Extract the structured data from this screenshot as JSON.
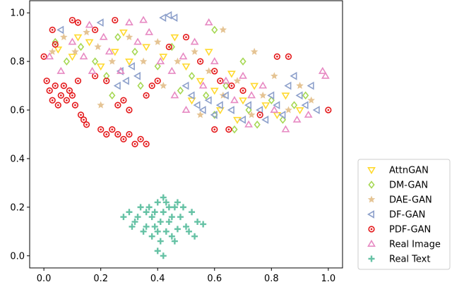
{
  "chart_data": {
    "type": "scatter",
    "xlim": [
      -0.05,
      1.05
    ],
    "ylim": [
      -0.05,
      1.05
    ],
    "xticks": [
      "0.0",
      "0.2",
      "0.4",
      "0.6",
      "0.8",
      "1.0"
    ],
    "yticks": [
      "0.0",
      "0.2",
      "0.4",
      "0.6",
      "0.8",
      "1.0"
    ],
    "grid": false,
    "legend_position": "right-bottom",
    "series": [
      {
        "name": "AttnGAN",
        "marker": "triangle-down",
        "color": "#ffd92f",
        "points": [
          [
            0.05,
            0.85
          ],
          [
            0.1,
            0.82
          ],
          [
            0.12,
            0.9
          ],
          [
            0.16,
            0.88
          ],
          [
            0.2,
            0.78
          ],
          [
            0.25,
            0.84
          ],
          [
            0.3,
            0.8
          ],
          [
            0.36,
            0.86
          ],
          [
            0.42,
            0.82
          ],
          [
            0.5,
            0.78
          ],
          [
            0.55,
            0.72
          ],
          [
            0.6,
            0.68
          ],
          [
            0.62,
            0.6
          ],
          [
            0.66,
            0.75
          ],
          [
            0.7,
            0.64
          ],
          [
            0.74,
            0.7
          ],
          [
            0.78,
            0.62
          ],
          [
            0.82,
            0.58
          ],
          [
            0.85,
            0.66
          ],
          [
            0.9,
            0.6
          ],
          [
            0.46,
            0.9
          ],
          [
            0.28,
            0.92
          ],
          [
            0.58,
            0.84
          ],
          [
            0.68,
            0.56
          ],
          [
            0.52,
            0.64
          ]
        ]
      },
      {
        "name": "DM-GAN",
        "marker": "diamond",
        "color": "#a6d854",
        "points": [
          [
            0.04,
            0.88
          ],
          [
            0.08,
            0.8
          ],
          [
            0.13,
            0.86
          ],
          [
            0.18,
            0.8
          ],
          [
            0.22,
            0.74
          ],
          [
            0.26,
            0.9
          ],
          [
            0.32,
            0.84
          ],
          [
            0.4,
            0.78
          ],
          [
            0.45,
            0.86
          ],
          [
            0.52,
            0.74
          ],
          [
            0.57,
            0.66
          ],
          [
            0.6,
            0.58
          ],
          [
            0.64,
            0.7
          ],
          [
            0.67,
            0.52
          ],
          [
            0.72,
            0.6
          ],
          [
            0.75,
            0.54
          ],
          [
            0.8,
            0.64
          ],
          [
            0.84,
            0.56
          ],
          [
            0.88,
            0.62
          ],
          [
            0.92,
            0.66
          ],
          [
            0.6,
            0.93
          ],
          [
            0.34,
            0.7
          ],
          [
            0.24,
            0.66
          ],
          [
            0.7,
            0.8
          ],
          [
            0.48,
            0.68
          ]
        ]
      },
      {
        "name": "DAE-GAN",
        "marker": "star",
        "color": "#e5c494",
        "points": [
          [
            0.03,
            0.84
          ],
          [
            0.07,
            0.9
          ],
          [
            0.11,
            0.84
          ],
          [
            0.15,
            0.92
          ],
          [
            0.19,
            0.86
          ],
          [
            0.24,
            0.8
          ],
          [
            0.3,
            0.9
          ],
          [
            0.35,
            0.8
          ],
          [
            0.4,
            0.88
          ],
          [
            0.47,
            0.8
          ],
          [
            0.53,
            0.84
          ],
          [
            0.58,
            0.76
          ],
          [
            0.63,
            0.66
          ],
          [
            0.68,
            0.72
          ],
          [
            0.73,
            0.58
          ],
          [
            0.77,
            0.66
          ],
          [
            0.81,
            0.74
          ],
          [
            0.86,
            0.6
          ],
          [
            0.9,
            0.7
          ],
          [
            0.94,
            0.64
          ],
          [
            0.63,
            0.93
          ],
          [
            0.42,
            0.7
          ],
          [
            0.2,
            0.62
          ],
          [
            0.74,
            0.84
          ],
          [
            0.55,
            0.58
          ]
        ]
      },
      {
        "name": "DF-GAN",
        "marker": "triangle-left",
        "color": "#8da0cb",
        "points": [
          [
            0.06,
            0.93
          ],
          [
            0.2,
            0.96
          ],
          [
            0.27,
            0.76
          ],
          [
            0.29,
            0.72
          ],
          [
            0.31,
            0.78
          ],
          [
            0.33,
            0.74
          ],
          [
            0.26,
            0.7
          ],
          [
            0.42,
            0.98
          ],
          [
            0.44,
            0.99
          ],
          [
            0.46,
            0.98
          ],
          [
            0.52,
            0.66
          ],
          [
            0.54,
            0.62
          ],
          [
            0.56,
            0.6
          ],
          [
            0.58,
            0.64
          ],
          [
            0.6,
            0.58
          ],
          [
            0.62,
            0.62
          ],
          [
            0.64,
            0.66
          ],
          [
            0.66,
            0.6
          ],
          [
            0.7,
            0.56
          ],
          [
            0.72,
            0.62
          ],
          [
            0.76,
            0.6
          ],
          [
            0.8,
            0.66
          ],
          [
            0.84,
            0.58
          ],
          [
            0.86,
            0.7
          ],
          [
            0.88,
            0.74
          ],
          [
            0.9,
            0.66
          ],
          [
            0.92,
            0.62
          ],
          [
            0.94,
            0.7
          ],
          [
            0.96,
            0.6
          ],
          [
            0.5,
            0.7
          ],
          [
            0.78,
            0.56
          ],
          [
            0.82,
            0.62
          ]
        ]
      },
      {
        "name": "PDF-GAN",
        "marker": "circle-dot",
        "color": "#e41a1c",
        "points": [
          [
            0.0,
            0.82
          ],
          [
            0.01,
            0.72
          ],
          [
            0.02,
            0.68
          ],
          [
            0.03,
            0.64
          ],
          [
            0.04,
            0.7
          ],
          [
            0.05,
            0.62
          ],
          [
            0.06,
            0.66
          ],
          [
            0.07,
            0.7
          ],
          [
            0.08,
            0.64
          ],
          [
            0.09,
            0.68
          ],
          [
            0.1,
            0.66
          ],
          [
            0.11,
            0.62
          ],
          [
            0.12,
            0.72
          ],
          [
            0.13,
            0.58
          ],
          [
            0.14,
            0.56
          ],
          [
            0.15,
            0.54
          ],
          [
            0.2,
            0.52
          ],
          [
            0.22,
            0.5
          ],
          [
            0.24,
            0.52
          ],
          [
            0.26,
            0.5
          ],
          [
            0.28,
            0.48
          ],
          [
            0.3,
            0.5
          ],
          [
            0.32,
            0.46
          ],
          [
            0.34,
            0.48
          ],
          [
            0.36,
            0.46
          ],
          [
            0.1,
            0.97
          ],
          [
            0.12,
            0.96
          ],
          [
            0.04,
            0.87
          ],
          [
            0.03,
            0.93
          ],
          [
            0.18,
            0.74
          ],
          [
            0.22,
            0.72
          ],
          [
            0.26,
            0.62
          ],
          [
            0.28,
            0.64
          ],
          [
            0.3,
            0.6
          ],
          [
            0.36,
            0.66
          ],
          [
            0.38,
            0.7
          ],
          [
            0.4,
            0.72
          ],
          [
            0.44,
            0.86
          ],
          [
            0.5,
            0.9
          ],
          [
            0.55,
            0.8
          ],
          [
            0.6,
            0.76
          ],
          [
            0.62,
            0.72
          ],
          [
            0.66,
            0.7
          ],
          [
            0.7,
            0.68
          ],
          [
            0.76,
            0.58
          ],
          [
            0.82,
            0.82
          ],
          [
            0.86,
            0.82
          ],
          [
            0.6,
            0.52
          ],
          [
            0.65,
            0.52
          ],
          [
            1.0,
            0.6
          ],
          [
            0.25,
            0.97
          ],
          [
            0.18,
            0.93
          ]
        ]
      },
      {
        "name": "Real Image",
        "marker": "triangle-up",
        "color": "#e78ac3",
        "points": [
          [
            0.02,
            0.82
          ],
          [
            0.06,
            0.76
          ],
          [
            0.1,
            0.88
          ],
          [
            0.14,
            0.82
          ],
          [
            0.17,
            0.76
          ],
          [
            0.21,
            0.9
          ],
          [
            0.23,
            0.84
          ],
          [
            0.27,
            0.76
          ],
          [
            0.33,
            0.88
          ],
          [
            0.37,
            0.92
          ],
          [
            0.41,
            0.8
          ],
          [
            0.45,
            0.76
          ],
          [
            0.49,
            0.82
          ],
          [
            0.53,
            0.88
          ],
          [
            0.56,
            0.7
          ],
          [
            0.6,
            0.8
          ],
          [
            0.64,
            0.72
          ],
          [
            0.67,
            0.64
          ],
          [
            0.7,
            0.74
          ],
          [
            0.73,
            0.66
          ],
          [
            0.77,
            0.7
          ],
          [
            0.81,
            0.6
          ],
          [
            0.85,
            0.52
          ],
          [
            0.89,
            0.56
          ],
          [
            0.93,
            0.58
          ],
          [
            0.98,
            0.76
          ],
          [
            0.99,
            0.74
          ],
          [
            0.35,
            0.97
          ],
          [
            0.3,
            0.96
          ],
          [
            0.16,
            0.95
          ],
          [
            0.46,
            0.66
          ],
          [
            0.72,
            0.54
          ],
          [
            0.58,
            0.96
          ],
          [
            0.5,
            0.6
          ]
        ]
      },
      {
        "name": "Real Text",
        "marker": "plus",
        "color": "#66c2a5",
        "points": [
          [
            0.3,
            0.18
          ],
          [
            0.32,
            0.14
          ],
          [
            0.34,
            0.2
          ],
          [
            0.36,
            0.12
          ],
          [
            0.38,
            0.16
          ],
          [
            0.4,
            0.22
          ],
          [
            0.42,
            0.18
          ],
          [
            0.44,
            0.14
          ],
          [
            0.46,
            0.2
          ],
          [
            0.48,
            0.16
          ],
          [
            0.5,
            0.12
          ],
          [
            0.52,
            0.18
          ],
          [
            0.54,
            0.14
          ],
          [
            0.56,
            0.13
          ],
          [
            0.35,
            0.1
          ],
          [
            0.38,
            0.08
          ],
          [
            0.41,
            0.06
          ],
          [
            0.43,
            0.1
          ],
          [
            0.45,
            0.08
          ],
          [
            0.47,
            0.11
          ],
          [
            0.33,
            0.16
          ],
          [
            0.37,
            0.2
          ],
          [
            0.39,
            0.12
          ],
          [
            0.41,
            0.14
          ],
          [
            0.43,
            0.22
          ],
          [
            0.45,
            0.16
          ],
          [
            0.47,
            0.22
          ],
          [
            0.49,
            0.2
          ],
          [
            0.51,
            0.1
          ],
          [
            0.36,
            0.18
          ],
          [
            0.4,
            0.1
          ],
          [
            0.44,
            0.2
          ],
          [
            0.42,
            0.0
          ],
          [
            0.4,
            0.02
          ],
          [
            0.28,
            0.16
          ],
          [
            0.31,
            0.12
          ],
          [
            0.53,
            0.08
          ],
          [
            0.46,
            0.06
          ],
          [
            0.42,
            0.24
          ],
          [
            0.39,
            0.18
          ]
        ]
      }
    ]
  }
}
